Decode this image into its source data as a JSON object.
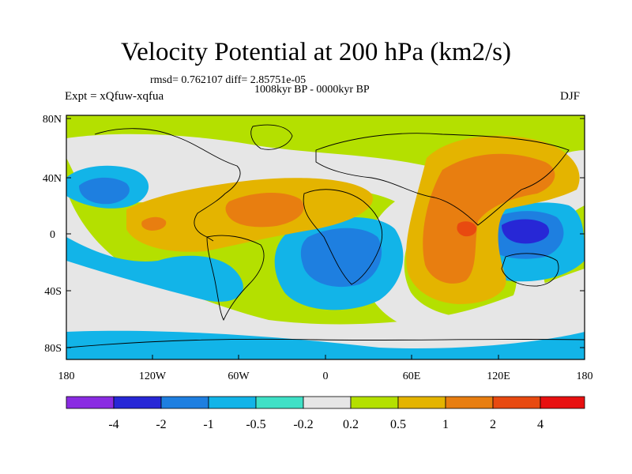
{
  "title": "Velocity Potential at 200 hPa (km2/s)",
  "stats_line": "rmsd= 0.762107  diff= 2.85751e-05",
  "period": "1008kyr BP - 0000kyr BP",
  "experiment": "Expt = xQfuw-xqfua",
  "season": "DJF",
  "lat_labels": [
    "80N",
    "40N",
    "0",
    "40S",
    "80S"
  ],
  "lon_labels": [
    "180",
    "120W",
    "60W",
    "0",
    "60E",
    "120E",
    "180"
  ],
  "colorbar": {
    "labels": [
      "-4",
      "-2",
      "-1",
      "-0.5",
      "-0.2",
      "0.2",
      "0.5",
      "1",
      "2",
      "4"
    ],
    "colors": [
      "#8a2be2",
      "#2727d6",
      "#1e7fe0",
      "#12b4e8",
      "#3fe0c6",
      "#e6e6e6",
      "#b4e000",
      "#e4b400",
      "#e87e10",
      "#e84a10",
      "#e81010"
    ]
  },
  "colors": {
    "land_outline": "#000000",
    "frame": "#000000"
  }
}
